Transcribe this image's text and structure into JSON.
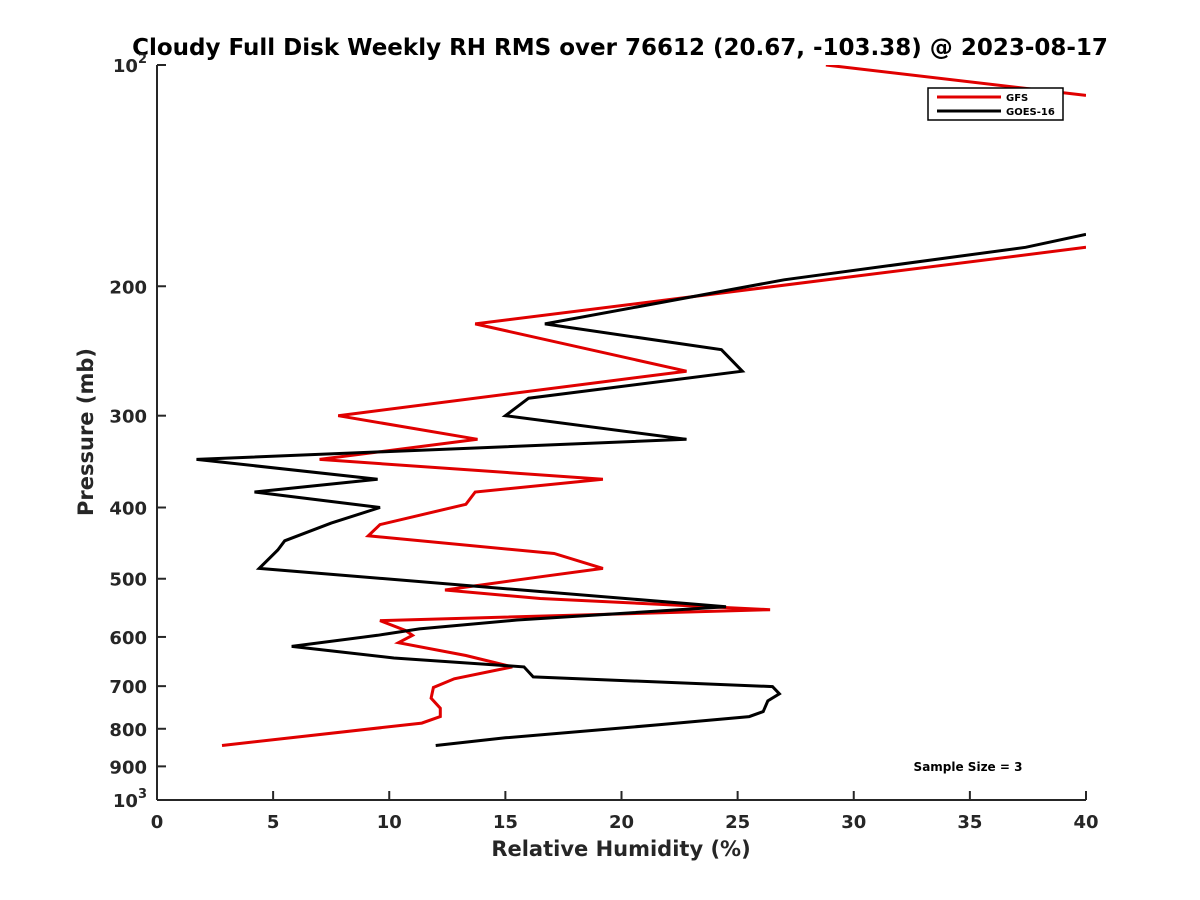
{
  "chart_data": {
    "type": "line",
    "title": "Cloudy Full Disk Weekly RH RMS over 76612 (20.67, -103.38) @ 2023-08-17",
    "xlabel": "Relative Humidity (%)",
    "ylabel": "Pressure (mb)",
    "xlim": [
      0,
      40
    ],
    "ylim": [
      100,
      1000
    ],
    "yscale": "log",
    "y_reversed": true,
    "xticks": [
      0,
      5,
      10,
      15,
      20,
      25,
      30,
      35,
      40
    ],
    "xtick_labels": [
      "0",
      "5",
      "10",
      "15",
      "20",
      "25",
      "30",
      "35",
      "40"
    ],
    "yticks": [
      {
        "value": 100,
        "base": "10",
        "exp": "2"
      },
      {
        "value": 200,
        "label": "200"
      },
      {
        "value": 300,
        "label": "300"
      },
      {
        "value": 400,
        "label": "400"
      },
      {
        "value": 500,
        "label": "500"
      },
      {
        "value": 600,
        "label": "600"
      },
      {
        "value": 700,
        "label": "700"
      },
      {
        "value": 800,
        "label": "800"
      },
      {
        "value": 900,
        "label": "900"
      },
      {
        "value": 1000,
        "base": "10",
        "exp": "3"
      }
    ],
    "legend": {
      "position": "top-right"
    },
    "annotation": "Sample Size = 3",
    "series": [
      {
        "name": "GFS",
        "color": "#e00000",
        "points": [
          [
            28.8,
            100
          ],
          [
            40,
            110
          ],
          [
            null,
            null
          ],
          [
            40,
            177
          ],
          [
            13.7,
            225
          ],
          [
            22.8,
            261
          ],
          [
            7.8,
            300
          ],
          [
            13.8,
            323
          ],
          [
            7.0,
            344
          ],
          [
            19.2,
            366
          ],
          [
            13.7,
            381
          ],
          [
            13.3,
            396
          ],
          [
            9.6,
            422
          ],
          [
            9.1,
            437
          ],
          [
            17.1,
            462
          ],
          [
            19.2,
            484
          ],
          [
            16.7,
            496
          ],
          [
            12.4,
            518
          ],
          [
            16.5,
            532
          ],
          [
            26.4,
            551
          ],
          [
            9.6,
            570
          ],
          [
            10.7,
            588
          ],
          [
            11.0,
            597
          ],
          [
            10.4,
            611
          ],
          [
            13.3,
            636
          ],
          [
            15.3,
            659
          ],
          [
            12.8,
            684
          ],
          [
            11.9,
            703
          ],
          [
            11.8,
            727
          ],
          [
            12.2,
            750
          ],
          [
            12.2,
            770
          ],
          [
            11.4,
            786
          ],
          [
            2.8,
            843
          ]
        ]
      },
      {
        "name": "GOES-16",
        "color": "#000000",
        "points": [
          [
            40,
            170
          ],
          [
            37.4,
            177
          ],
          [
            27.0,
            196
          ],
          [
            16.7,
            225
          ],
          [
            24.3,
            244
          ],
          [
            25.2,
            261
          ],
          [
            16.0,
            284
          ],
          [
            15.0,
            300
          ],
          [
            22.8,
            323
          ],
          [
            1.7,
            344
          ],
          [
            9.5,
            366
          ],
          [
            4.2,
            381
          ],
          [
            9.6,
            400
          ],
          [
            7.5,
            420
          ],
          [
            5.5,
            444
          ],
          [
            5.2,
            457
          ],
          [
            4.4,
            484
          ],
          [
            24.5,
            546
          ],
          [
            15.5,
            569
          ],
          [
            11.3,
            585
          ],
          [
            9.5,
            597
          ],
          [
            5.8,
            618
          ],
          [
            10.2,
            641
          ],
          [
            15.8,
            659
          ],
          [
            16.2,
            680
          ],
          [
            26.5,
            701
          ],
          [
            26.8,
            717
          ],
          [
            26.3,
            733
          ],
          [
            26.1,
            758
          ],
          [
            25.5,
            770
          ],
          [
            21.6,
            790
          ],
          [
            15.0,
            823
          ],
          [
            12.0,
            843
          ]
        ]
      }
    ]
  }
}
